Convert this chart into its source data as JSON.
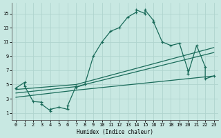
{
  "xlabel": "Humidex (Indice chaleur)",
  "xlim": [
    -0.5,
    23.5
  ],
  "ylim": [
    0,
    16.5
  ],
  "xticks": [
    0,
    1,
    2,
    3,
    4,
    5,
    6,
    7,
    8,
    9,
    10,
    11,
    12,
    13,
    14,
    15,
    16,
    17,
    18,
    19,
    20,
    21,
    22,
    23
  ],
  "yticks": [
    1,
    3,
    5,
    7,
    9,
    11,
    13,
    15
  ],
  "bg_color": "#c8e8e2",
  "grid_color": "#b0d4ce",
  "line_color": "#1a6b5a",
  "main_x": [
    0,
    1,
    1,
    2,
    3,
    3,
    4,
    4,
    5,
    6,
    6,
    7,
    7,
    8,
    9,
    10,
    11,
    12,
    13,
    14,
    14,
    15,
    15,
    16,
    16,
    17,
    18,
    19,
    20,
    20,
    21,
    22,
    22,
    23
  ],
  "main_y": [
    4.5,
    5.3,
    4.8,
    2.6,
    2.5,
    2.2,
    1.3,
    1.5,
    1.8,
    1.5,
    2.0,
    4.8,
    4.6,
    5.0,
    9.0,
    11.0,
    12.5,
    13.0,
    14.5,
    15.2,
    15.5,
    15.0,
    15.5,
    14.0,
    13.8,
    11.0,
    10.5,
    10.8,
    7.0,
    6.5,
    10.5,
    7.5,
    5.8,
    6.2
  ],
  "line1_x": [
    0,
    7,
    23
  ],
  "line1_y": [
    4.3,
    5.0,
    10.2
  ],
  "line2_x": [
    0,
    7,
    23
  ],
  "line2_y": [
    3.8,
    4.7,
    9.5
  ],
  "line3_x": [
    0,
    7,
    23
  ],
  "line3_y": [
    3.2,
    4.2,
    6.2
  ]
}
